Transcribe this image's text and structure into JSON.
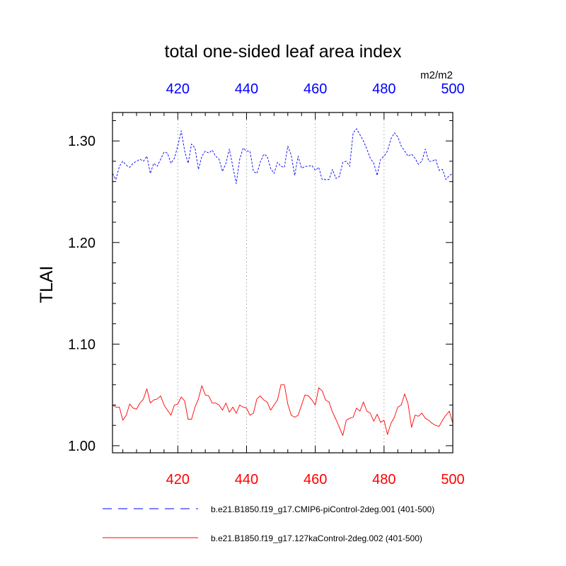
{
  "chart_data": {
    "type": "line",
    "title": "total one-sided leaf area index",
    "units": "m2/m2",
    "ylabel": "TLAI",
    "xlim": [
      401,
      500
    ],
    "ylim": [
      0.993,
      1.328
    ],
    "x_ticks": [
      420,
      440,
      460,
      480,
      500
    ],
    "y_ticks": [
      1.0,
      1.1,
      1.2,
      1.3
    ],
    "y_tick_labels": [
      "1.00",
      "1.10",
      "1.20",
      "1.30"
    ],
    "grid": "vertical dotted lines at major x ticks",
    "bottom_axis_color": "#ff0000",
    "top_axis_color": "#0000ff",
    "x_start": 401,
    "series": [
      {
        "name": "b.e21.B1850.f19_g17.CMIP6-piControl-2deg.001 (401-500)",
        "axis": "top",
        "color": "#0000ff",
        "dash": "dashed",
        "values": [
          1.268,
          1.262,
          1.275,
          1.28,
          1.276,
          1.274,
          1.278,
          1.28,
          1.282,
          1.28,
          1.285,
          1.268,
          1.278,
          1.275,
          1.282,
          1.289,
          1.288,
          1.278,
          1.283,
          1.295,
          1.31,
          1.29,
          1.278,
          1.297,
          1.293,
          1.272,
          1.285,
          1.29,
          1.288,
          1.291,
          1.285,
          1.282,
          1.27,
          1.278,
          1.292,
          1.275,
          1.258,
          1.282,
          1.293,
          1.29,
          1.29,
          1.27,
          1.268,
          1.279,
          1.287,
          1.285,
          1.273,
          1.268,
          1.279,
          1.275,
          1.274,
          1.295,
          1.286,
          1.266,
          1.285,
          1.273,
          1.275,
          1.275,
          1.276,
          1.271,
          1.274,
          1.262,
          1.262,
          1.262,
          1.272,
          1.263,
          1.265,
          1.279,
          1.28,
          1.275,
          1.308,
          1.312,
          1.306,
          1.3,
          1.292,
          1.283,
          1.278,
          1.266,
          1.282,
          1.285,
          1.29,
          1.302,
          1.308,
          1.304,
          1.295,
          1.29,
          1.285,
          1.287,
          1.283,
          1.277,
          1.28,
          1.292,
          1.28,
          1.28,
          1.282,
          1.271,
          1.272,
          1.262,
          1.266,
          1.268
        ]
      },
      {
        "name": "b.e21.B1850.f19_g17.127kaControl-2deg.002 (401-500)",
        "axis": "bottom",
        "color": "#ff0000",
        "dash": "solid",
        "values": [
          1.04,
          1.038,
          1.038,
          1.025,
          1.03,
          1.041,
          1.037,
          1.036,
          1.042,
          1.046,
          1.056,
          1.042,
          1.045,
          1.046,
          1.049,
          1.04,
          1.035,
          1.03,
          1.04,
          1.041,
          1.048,
          1.044,
          1.026,
          1.026,
          1.038,
          1.046,
          1.059,
          1.05,
          1.049,
          1.042,
          1.042,
          1.04,
          1.035,
          1.042,
          1.033,
          1.038,
          1.032,
          1.04,
          1.038,
          1.037,
          1.03,
          1.032,
          1.046,
          1.049,
          1.045,
          1.043,
          1.035,
          1.04,
          1.045,
          1.06,
          1.06,
          1.041,
          1.03,
          1.028,
          1.03,
          1.04,
          1.05,
          1.049,
          1.045,
          1.04,
          1.057,
          1.054,
          1.045,
          1.043,
          1.033,
          1.026,
          1.018,
          1.01,
          1.025,
          1.027,
          1.028,
          1.037,
          1.034,
          1.043,
          1.034,
          1.032,
          1.024,
          1.031,
          1.023,
          1.025,
          1.011,
          1.022,
          1.028,
          1.038,
          1.04,
          1.051,
          1.041,
          1.018,
          1.03,
          1.029,
          1.032,
          1.027,
          1.025,
          1.022,
          1.02,
          1.019,
          1.025,
          1.03,
          1.034,
          1.022
        ]
      }
    ]
  }
}
